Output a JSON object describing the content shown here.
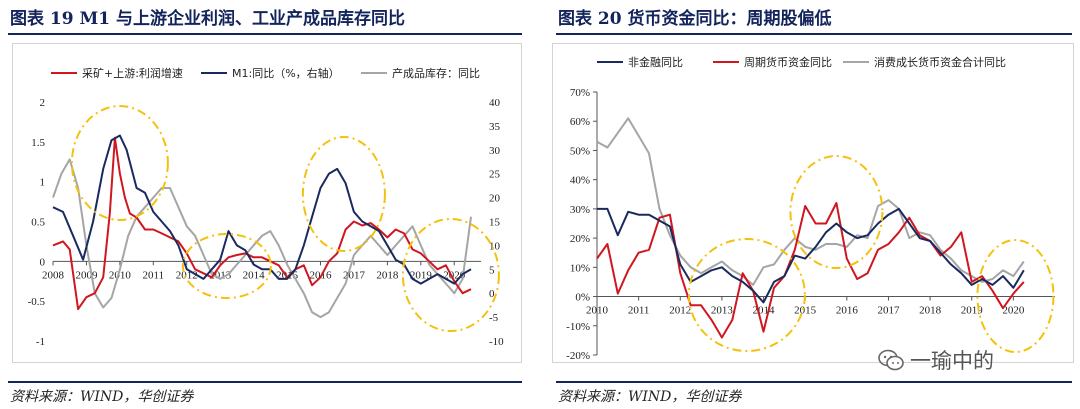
{
  "left": {
    "title": "图表 19   M1 与上游企业利润、工业产成品库存同比",
    "source": "资料来源：WIND，华创证券"
  },
  "right": {
    "title": "图表 20   货币资金同比：周期股偏低",
    "source": "资料来源：WIND，华创证券"
  },
  "watermark": "一瑜中的",
  "colors": {
    "navy": "#1b2a5e",
    "red": "#d0161f",
    "gray": "#a5a5a5",
    "highlight": "#f4c10e"
  },
  "chart_data": [
    {
      "type": "line",
      "title": "",
      "xlabel": "",
      "ylabel": "",
      "x_ticks": [
        "2008",
        "2009",
        "2010",
        "2011",
        "2012",
        "2013",
        "2014",
        "2015",
        "2016",
        "2017",
        "2018",
        "2019",
        "2020"
      ],
      "x_range": [
        2008.0,
        2020.8
      ],
      "ylim_left": [
        -1,
        2
      ],
      "yticks_left": [
        "2",
        "1.5",
        "1",
        "0.5",
        "0",
        "-0.5",
        "-1"
      ],
      "ylim_right": [
        -10,
        40
      ],
      "yticks_right": [
        "40",
        "35",
        "30",
        "25",
        "20",
        "15",
        "10",
        "5",
        "0",
        "-5",
        "-10"
      ],
      "grid": false,
      "legend_position": "top",
      "series": [
        {
          "name": "采矿+上游:利润增速",
          "color": "#d0161f",
          "axis": "left",
          "x": [
            2008.0,
            2008.3,
            2008.5,
            2008.75,
            2009.0,
            2009.25,
            2009.5,
            2009.7,
            2009.85,
            2010.0,
            2010.15,
            2010.3,
            2010.5,
            2010.75,
            2011.0,
            2011.25,
            2011.5,
            2011.75,
            2012.0,
            2012.25,
            2012.5,
            2012.75,
            2013.0,
            2013.25,
            2013.5,
            2013.75,
            2014.0,
            2014.25,
            2014.5,
            2014.75,
            2015.0,
            2015.25,
            2015.5,
            2015.75,
            2016.0,
            2016.25,
            2016.5,
            2016.75,
            2017.0,
            2017.25,
            2017.5,
            2017.75,
            2018.0,
            2018.25,
            2018.5,
            2018.75,
            2019.0,
            2019.25,
            2019.5,
            2019.75,
            2020.0,
            2020.25,
            2020.5
          ],
          "y": [
            0.2,
            0.25,
            0.15,
            -0.6,
            -0.45,
            -0.4,
            -0.2,
            0.6,
            1.55,
            1.1,
            0.8,
            0.6,
            0.55,
            0.4,
            0.4,
            0.35,
            0.3,
            0.25,
            0.1,
            -0.1,
            -0.15,
            -0.2,
            -0.05,
            0.05,
            0.08,
            0.1,
            0.05,
            0.05,
            0.0,
            -0.05,
            -0.2,
            -0.1,
            -0.05,
            -0.3,
            -0.2,
            0.0,
            0.1,
            0.4,
            0.5,
            0.45,
            0.48,
            0.4,
            0.3,
            0.4,
            0.35,
            0.15,
            0.1,
            0.0,
            -0.1,
            -0.05,
            -0.25,
            -0.4,
            -0.35
          ]
        },
        {
          "name": "M1:同比（%，右轴）",
          "color": "#1b2a5e",
          "axis": "right",
          "x": [
            2008.0,
            2008.3,
            2008.6,
            2008.9,
            2009.2,
            2009.5,
            2009.75,
            2010.0,
            2010.2,
            2010.5,
            2010.75,
            2011.0,
            2011.25,
            2011.5,
            2011.75,
            2012.0,
            2012.25,
            2012.5,
            2012.75,
            2013.0,
            2013.25,
            2013.5,
            2013.75,
            2014.0,
            2014.25,
            2014.5,
            2014.75,
            2015.0,
            2015.25,
            2015.5,
            2015.75,
            2016.0,
            2016.25,
            2016.5,
            2016.75,
            2017.0,
            2017.25,
            2017.5,
            2017.75,
            2018.0,
            2018.25,
            2018.5,
            2018.75,
            2019.0,
            2019.25,
            2019.5,
            2019.75,
            2020.0,
            2020.25,
            2020.5
          ],
          "y": [
            18,
            17,
            12,
            7,
            15,
            26,
            32,
            33,
            30,
            22,
            21,
            17,
            15,
            13,
            10,
            5,
            4,
            3,
            5,
            7,
            13,
            10,
            9,
            6,
            5,
            5,
            3,
            3,
            5,
            10,
            16,
            22,
            25,
            26,
            23,
            17,
            15,
            14,
            13,
            10,
            7,
            6,
            3,
            2,
            3,
            4,
            3,
            2,
            4,
            5
          ]
        },
        {
          "name": "产成品库存：同比",
          "color": "#a5a5a5",
          "axis": "right",
          "x": [
            2008.0,
            2008.25,
            2008.5,
            2008.75,
            2009.0,
            2009.25,
            2009.5,
            2009.75,
            2010.0,
            2010.25,
            2010.5,
            2010.75,
            2011.0,
            2011.25,
            2011.5,
            2011.75,
            2012.0,
            2012.25,
            2012.5,
            2012.75,
            2013.0,
            2013.25,
            2013.5,
            2013.75,
            2014.0,
            2014.25,
            2014.5,
            2014.75,
            2015.0,
            2015.25,
            2015.5,
            2015.75,
            2016.0,
            2016.25,
            2016.5,
            2016.75,
            2017.0,
            2017.25,
            2017.5,
            2017.75,
            2018.0,
            2018.25,
            2018.5,
            2018.75,
            2019.0,
            2019.25,
            2019.5,
            2019.75,
            2020.0,
            2020.25,
            2020.5
          ],
          "y": [
            20,
            25,
            28,
            22,
            10,
            0,
            -3,
            -1,
            5,
            12,
            16,
            18,
            20,
            22,
            22,
            18,
            14,
            12,
            8,
            4,
            3,
            4,
            6,
            8,
            10,
            12,
            13,
            10,
            6,
            3,
            0,
            -4,
            -5,
            -4,
            -1,
            2,
            8,
            10,
            12,
            10,
            8,
            10,
            12,
            14,
            10,
            6,
            4,
            2,
            0,
            3,
            16
          ]
        }
      ]
    },
    {
      "type": "line",
      "title": "",
      "xlabel": "",
      "ylabel": "",
      "x_ticks": [
        "2010",
        "2011",
        "2012",
        "2013",
        "2014",
        "2015",
        "2016",
        "2017",
        "2018",
        "2019",
        "2020"
      ],
      "x_range": [
        2010.0,
        2021.0
      ],
      "ylim": [
        -20,
        70
      ],
      "yticks": [
        "70%",
        "60%",
        "50%",
        "40%",
        "30%",
        "20%",
        "10%",
        "0%",
        "-10%",
        "-20%"
      ],
      "grid": false,
      "legend_position": "top",
      "series": [
        {
          "name": "非金融同比",
          "color": "#1b2a5e",
          "x": [
            2010.0,
            2010.25,
            2010.5,
            2010.75,
            2011.0,
            2011.25,
            2011.5,
            2011.75,
            2012.0,
            2012.25,
            2012.5,
            2012.75,
            2013.0,
            2013.25,
            2013.5,
            2013.75,
            2014.0,
            2014.25,
            2014.5,
            2014.75,
            2015.0,
            2015.25,
            2015.5,
            2015.75,
            2016.0,
            2016.25,
            2016.5,
            2016.75,
            2017.0,
            2017.25,
            2017.5,
            2017.75,
            2018.0,
            2018.25,
            2018.5,
            2018.75,
            2019.0,
            2019.25,
            2019.5,
            2019.75,
            2020.0,
            2020.25
          ],
          "y": [
            30,
            30,
            21,
            29,
            28,
            28,
            26,
            24,
            11,
            5,
            7,
            9,
            10,
            7,
            5,
            2,
            -2,
            5,
            7,
            14,
            13,
            17,
            22,
            25,
            22,
            20,
            21,
            25,
            28,
            30,
            25,
            20,
            19,
            15,
            11,
            8,
            4,
            6,
            4,
            7,
            3,
            9
          ]
        },
        {
          "name": "周期货币资金同比",
          "color": "#d0161f",
          "x": [
            2010.0,
            2010.25,
            2010.5,
            2010.75,
            2011.0,
            2011.25,
            2011.5,
            2011.75,
            2012.0,
            2012.25,
            2012.5,
            2012.75,
            2013.0,
            2013.25,
            2013.5,
            2013.75,
            2014.0,
            2014.25,
            2014.5,
            2014.75,
            2015.0,
            2015.25,
            2015.5,
            2015.75,
            2016.0,
            2016.25,
            2016.5,
            2016.75,
            2017.0,
            2017.25,
            2017.5,
            2017.75,
            2018.0,
            2018.25,
            2018.5,
            2018.75,
            2019.0,
            2019.25,
            2019.5,
            2019.75,
            2020.0,
            2020.25
          ],
          "y": [
            13,
            18,
            1,
            9,
            15,
            16,
            27,
            28,
            8,
            -3,
            -3,
            -8,
            -14,
            -8,
            8,
            2,
            -12,
            3,
            7,
            16,
            31,
            25,
            25,
            32,
            13,
            6,
            8,
            16,
            18,
            22,
            27,
            21,
            19,
            14,
            17,
            22,
            5,
            7,
            2,
            -4,
            1,
            5
          ]
        },
        {
          "name": "消费成长货币资金合计同比",
          "color": "#a5a5a5",
          "x": [
            2010.0,
            2010.25,
            2010.5,
            2010.75,
            2011.0,
            2011.25,
            2011.5,
            2011.75,
            2012.0,
            2012.25,
            2012.5,
            2012.75,
            2013.0,
            2013.25,
            2013.5,
            2013.75,
            2014.0,
            2014.25,
            2014.5,
            2014.75,
            2015.0,
            2015.25,
            2015.5,
            2015.75,
            2016.0,
            2016.25,
            2016.5,
            2016.75,
            2017.0,
            2017.25,
            2017.5,
            2017.75,
            2018.0,
            2018.25,
            2018.5,
            2018.75,
            2019.0,
            2019.25,
            2019.5,
            2019.75,
            2020.0,
            2020.25
          ],
          "y": [
            53,
            51,
            56,
            61,
            55,
            49,
            30,
            21,
            14,
            10,
            8,
            10,
            12,
            9,
            7,
            4,
            10,
            11,
            16,
            20,
            17,
            16,
            18,
            18,
            17,
            21,
            20,
            31,
            33,
            30,
            20,
            22,
            21,
            16,
            13,
            9,
            7,
            5,
            6,
            9,
            7,
            12
          ]
        }
      ]
    }
  ]
}
